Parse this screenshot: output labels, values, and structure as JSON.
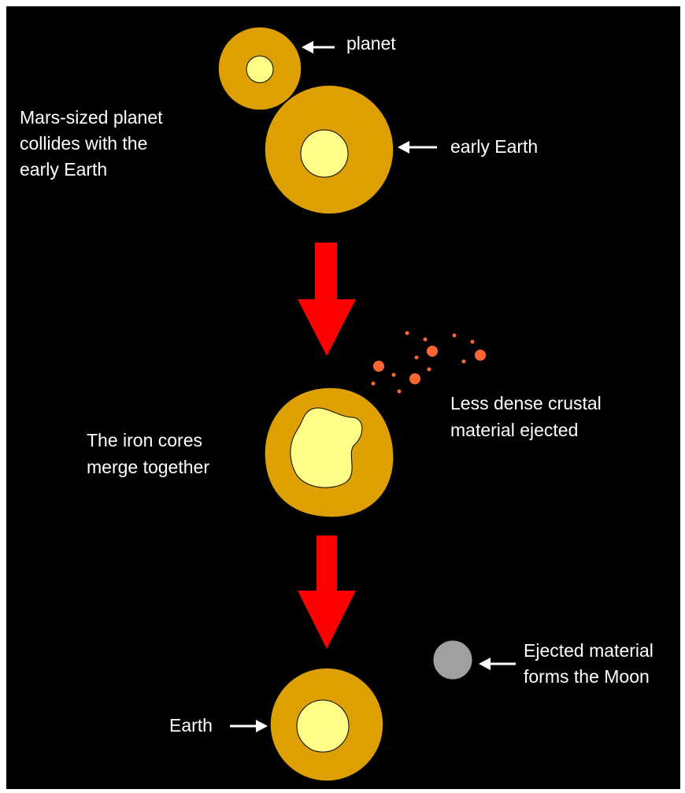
{
  "labels": {
    "planet": "planet",
    "early_earth": "early Earth",
    "collision": [
      "Mars-sized planet",
      "collides with the",
      "early Earth"
    ],
    "merge": [
      "The iron cores",
      "merge together"
    ],
    "ejected": [
      "Less dense crustal",
      "material ejected"
    ],
    "moon": [
      "Ejected material",
      "forms the Moon"
    ],
    "earth": "Earth"
  }
}
